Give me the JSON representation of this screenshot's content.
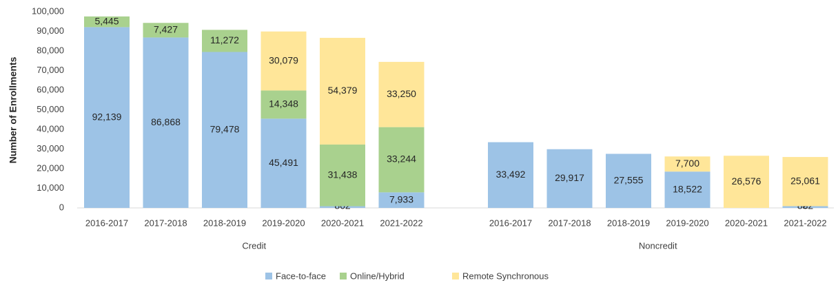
{
  "chart_data": {
    "type": "stacked_bar",
    "y_label": "Number of Enrollments",
    "group_labels": [
      "Credit",
      "Noncredit"
    ],
    "categories": [
      "2016-2017",
      "2017-2018",
      "2018-2019",
      "2019-2020",
      "2020-2021",
      "2021-2022",
      "2016-2017",
      "2017-2018",
      "2018-2019",
      "2019-2020",
      "2020-2021",
      "2021-2022"
    ],
    "series": [
      {
        "name": "Face-to-face",
        "color": "#9dc3e6",
        "values": [
          92139,
          86868,
          79478,
          45491,
          862,
          7933,
          33492,
          29917,
          27555,
          18522,
          null,
          882
        ],
        "value_labels": [
          "92,139",
          "86,868",
          "79,478",
          "45,491",
          "862",
          "7,933",
          "33,492",
          "29,917",
          "27,555",
          "18,522",
          null,
          "882"
        ]
      },
      {
        "name": "Online/Hybrid",
        "color": "#a9d18e",
        "values": [
          5445,
          7427,
          11272,
          14348,
          31438,
          33244,
          null,
          null,
          null,
          null,
          null,
          2
        ],
        "value_labels": [
          "5,445",
          "7,427",
          "11,272",
          "14,348",
          "31,438",
          "33,244",
          null,
          null,
          null,
          null,
          null,
          "2"
        ]
      },
      {
        "name": "Remote Synchronous",
        "color": "#ffe699",
        "values": [
          null,
          null,
          null,
          30079,
          54379,
          33250,
          null,
          null,
          null,
          7700,
          26576,
          25061
        ],
        "value_labels": [
          null,
          null,
          null,
          "30,079",
          "54,379",
          "33,250",
          null,
          null,
          null,
          "7,700",
          "26,576",
          "25,061"
        ]
      }
    ],
    "ylim": [
      0,
      100000
    ],
    "yticks": [
      0,
      {
        "value": 10000,
        "label": "10,000"
      },
      {
        "value": 20000,
        "label": "20,000"
      },
      {
        "value": 30000,
        "label": "30,000"
      },
      {
        "value": 40000,
        "label": "40,000"
      },
      {
        "value": 50000,
        "label": "50,000"
      },
      {
        "value": 60000,
        "label": "60,000"
      },
      {
        "value": 70000,
        "label": "70,000"
      },
      {
        "value": 80000,
        "label": "80,000"
      },
      {
        "value": 90000,
        "label": "90,000"
      },
      {
        "value": 100000,
        "label": "100,000"
      }
    ],
    "legend": "bottom"
  }
}
